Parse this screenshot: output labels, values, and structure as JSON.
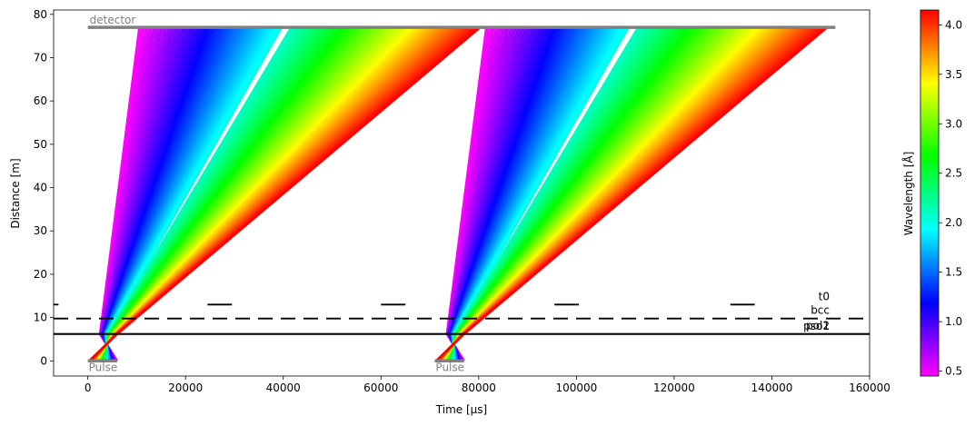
{
  "chart_data": {
    "type": "line",
    "title": "",
    "xlabel": "Time [µs]",
    "ylabel": "Distance [m]",
    "xlim": [
      -7000,
      160000
    ],
    "ylim": [
      -3.5,
      81
    ],
    "x_ticks": [
      {
        "value": 0,
        "label": "0"
      },
      {
        "value": 20000,
        "label": "20000"
      },
      {
        "value": 40000,
        "label": "40000"
      },
      {
        "value": 60000,
        "label": "60000"
      },
      {
        "value": 80000,
        "label": "80000"
      },
      {
        "value": 100000,
        "label": "100000"
      },
      {
        "value": 120000,
        "label": "120000"
      },
      {
        "value": 140000,
        "label": "140000"
      },
      {
        "value": 160000,
        "label": "160000"
      }
    ],
    "y_ticks": [
      {
        "value": 0,
        "label": "0"
      },
      {
        "value": 10,
        "label": "10"
      },
      {
        "value": 20,
        "label": "20"
      },
      {
        "value": 30,
        "label": "30"
      },
      {
        "value": 40,
        "label": "40"
      },
      {
        "value": 50,
        "label": "50"
      },
      {
        "value": 60,
        "label": "60"
      },
      {
        "value": 70,
        "label": "70"
      },
      {
        "value": 80,
        "label": "80"
      }
    ],
    "grid": false,
    "legend": "none",
    "detector": {
      "label": "detector",
      "distance": 77,
      "t_start": 0,
      "t_end": 153000,
      "color": "#808080"
    },
    "pulses": [
      {
        "label": "Pulse",
        "t_start": 0,
        "t_end": 6000,
        "distance": 0,
        "color": "#808080"
      },
      {
        "label": "Pulse",
        "t_start": 71000,
        "t_end": 77000,
        "distance": 0,
        "color": "#808080"
      }
    ],
    "choppers": [
      {
        "label": "t0",
        "distance": 13,
        "open_intervals": [],
        "closed_intervals": [
          [
            -7000,
            -6000
          ],
          [
            24500,
            29500
          ],
          [
            60000,
            65000
          ],
          [
            95500,
            100500
          ],
          [
            131500,
            136500
          ]
        ]
      },
      {
        "label": "bcc",
        "distance": 9.78,
        "open_intervals": [
          [
            -3500,
            -800
          ],
          [
            4800,
            8200
          ],
          [
            11500,
            14500
          ]
        ],
        "dashed": true
      },
      {
        "label": "pol2",
        "distance": 6.22,
        "open_intervals": [
          [
            1500,
            6000
          ],
          [
            72500,
            77000
          ]
        ]
      },
      {
        "label": "pso1",
        "distance": 6.18,
        "open_intervals": [
          [
            1500,
            6000
          ],
          [
            72500,
            77000
          ]
        ]
      }
    ],
    "series": [
      {
        "pulse_start": 0,
        "pulse_end": 6000,
        "chopper_distance": 6.2,
        "chopper_open": [
          2500,
          6000
        ],
        "wavelength_min": 0.45,
        "wavelength_max": 4.15,
        "gap_wavelength": [
          2.0,
          2.1
        ]
      },
      {
        "pulse_start": 71000,
        "pulse_end": 77000,
        "chopper_distance": 6.2,
        "chopper_open": [
          73500,
          77000
        ],
        "wavelength_min": 0.45,
        "wavelength_max": 4.15,
        "gap_wavelength": [
          2.0,
          2.1
        ]
      }
    ],
    "colorbar": {
      "label": "Wavelength [Å]",
      "min": 0.45,
      "max": 4.15,
      "colormap": "gist_rainbow_r",
      "ticks": [
        {
          "value": 0.5,
          "label": "0.5"
        },
        {
          "value": 1.0,
          "label": "1.0"
        },
        {
          "value": 1.5,
          "label": "1.5"
        },
        {
          "value": 2.0,
          "label": "2.0"
        },
        {
          "value": 2.5,
          "label": "2.5"
        },
        {
          "value": 3.0,
          "label": "3.0"
        },
        {
          "value": 3.5,
          "label": "3.5"
        },
        {
          "value": 4.0,
          "label": "4.0"
        }
      ]
    }
  }
}
